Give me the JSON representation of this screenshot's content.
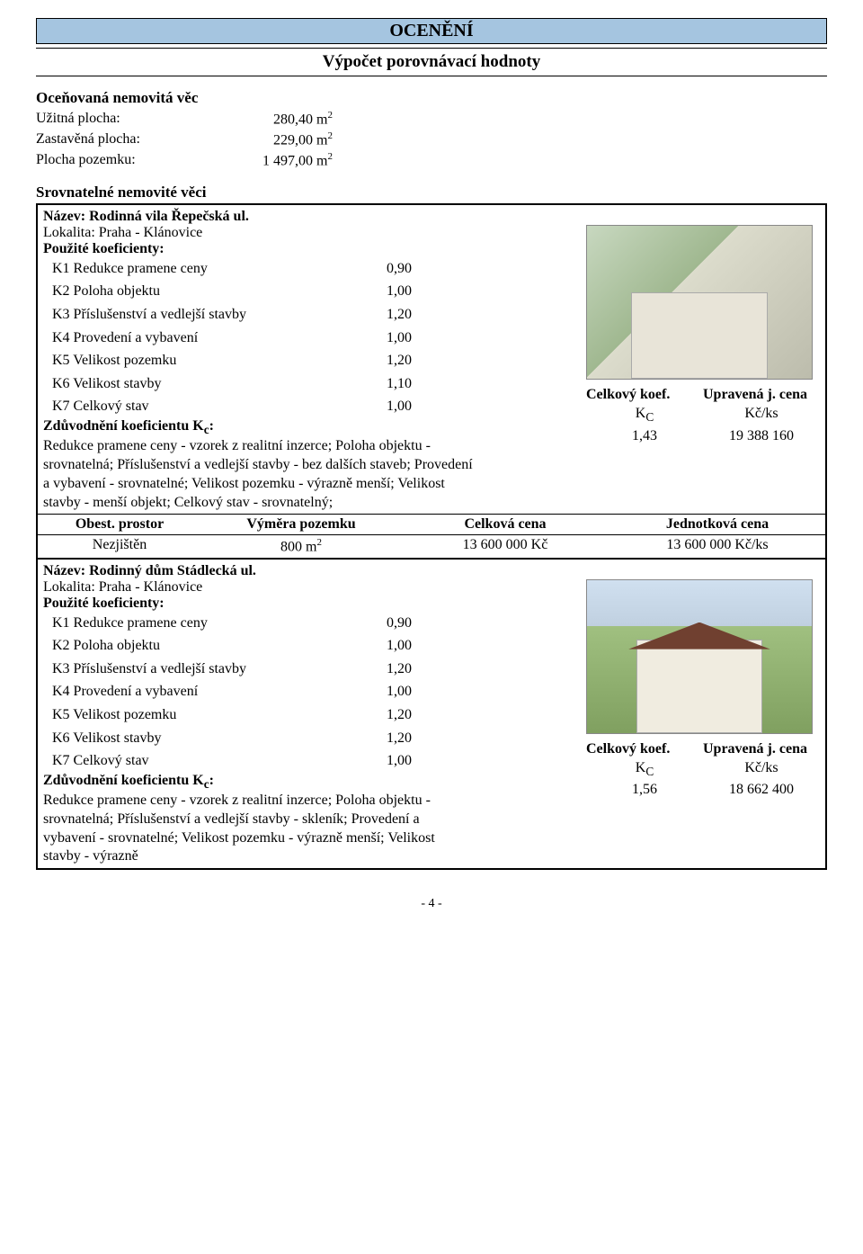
{
  "header": "OCENĚNÍ",
  "subheader": "Výpočet porovnávací hodnoty",
  "subject": {
    "title": "Oceňovaná nemovitá věc",
    "rows": [
      {
        "label": "Užitná plocha:",
        "value": "280,40 m",
        "sup": "2"
      },
      {
        "label": "Zastavěná plocha:",
        "value": "229,00 m",
        "sup": "2"
      },
      {
        "label": "Plocha pozemku:",
        "value": "1 497,00 m",
        "sup": "2"
      }
    ]
  },
  "srov_title": "Srovnatelné nemovité věci",
  "comps": [
    {
      "name": "Název: Rodinná vila Řepečská ul.",
      "lokalita": "Lokalita: Praha - Klánovice",
      "koef_hdr": "Použité koeficienty:",
      "coefs": [
        {
          "label": "K1 Redukce pramene ceny",
          "val": "0,90"
        },
        {
          "label": "K2 Poloha objektu",
          "val": "1,00"
        },
        {
          "label": "K3 Příslušenství a vedlejší stavby",
          "val": "1,20"
        },
        {
          "label": "K4 Provedení a vybavení",
          "val": "1,00"
        },
        {
          "label": "K5 Velikost pozemku",
          "val": "1,20"
        },
        {
          "label": "K6 Velikost stavby",
          "val": "1,10"
        },
        {
          "label": "K7 Celkový stav",
          "val": "1,00"
        }
      ],
      "zduv_label": "Zdůvodnění koeficientu K",
      "zduv_sub": "c",
      "zduv_colon": ":",
      "zduv_text": "Redukce pramene ceny - vzorek z realitní inzerce; Poloha objektu - srovnatelná; Příslušenství a vedlejší stavby - bez dalších staveb; Provedení a vybavení - srovnatelné; Velikost pozemku - výrazně menší; Velikost stavby - menší objekt; Celkový stav - srovnatelný;",
      "koef_h1": "Celkový koef.",
      "koef_h2": "Upravená j. cena",
      "koef_r1a": "K",
      "koef_r1a_sub": "C",
      "koef_r1b": "Kč/ks",
      "koef_r2a": "1,43",
      "koef_r2b": "19 388 160",
      "summary_hdr": [
        "Obest. prostor",
        "Výměra pozemku",
        "Celková cena",
        "Jednotková cena"
      ],
      "summary_row": [
        "Nezjištěn",
        "800 m",
        "13 600 000 Kč",
        "13 600 000 Kč/ks"
      ],
      "summary_sup": "2"
    },
    {
      "name": "Název: Rodinný dům Stádlecká ul.",
      "lokalita": "Lokalita: Praha - Klánovice",
      "koef_hdr": "Použité koeficienty:",
      "coefs": [
        {
          "label": "K1 Redukce pramene ceny",
          "val": "0,90"
        },
        {
          "label": "K2 Poloha objektu",
          "val": "1,00"
        },
        {
          "label": "K3 Příslušenství a vedlejší stavby",
          "val": "1,20"
        },
        {
          "label": "K4 Provedení a vybavení",
          "val": "1,00"
        },
        {
          "label": "K5 Velikost pozemku",
          "val": "1,20"
        },
        {
          "label": "K6 Velikost stavby",
          "val": "1,20"
        },
        {
          "label": "K7 Celkový stav",
          "val": "1,00"
        }
      ],
      "zduv_label": "Zdůvodnění koeficientu K",
      "zduv_sub": "c",
      "zduv_colon": ":",
      "zduv_text": "Redukce pramene ceny - vzorek z realitní inzerce; Poloha objektu - srovnatelná; Příslušenství a vedlejší stavby - skleník; Provedení a vybavení - srovnatelné; Velikost pozemku - výrazně menší; Velikost stavby - výrazně",
      "koef_h1": "Celkový koef.",
      "koef_h2": "Upravená j. cena",
      "koef_r1a": "K",
      "koef_r1a_sub": "C",
      "koef_r1b": "Kč/ks",
      "koef_r2a": "1,56",
      "koef_r2b": "18 662 400"
    }
  ],
  "page_num": "- 4 -"
}
